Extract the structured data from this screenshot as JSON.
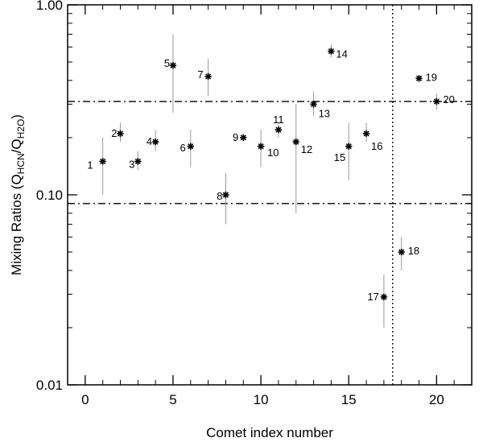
{
  "chart_data": {
    "type": "scatter",
    "title": "",
    "xlabel": "Comet index number",
    "ylabel": {
      "main": "Mixing Ratios (Q",
      "sub1": "HCN",
      "mid": "/Q",
      "sub2": "H2O",
      "end": ")"
    },
    "xlim": [
      -1,
      22
    ],
    "ylim": [
      0.01,
      1.0
    ],
    "yscale": "log",
    "x_ticks": [
      0,
      5,
      10,
      15,
      20
    ],
    "x_tick_labels": [
      "0",
      "5",
      "10",
      "15",
      "20"
    ],
    "y_ticks": [
      0.01,
      0.1,
      1.0
    ],
    "y_tick_labels": [
      "0.01",
      "0.10",
      "1.00"
    ],
    "grid": false,
    "reference_lines": {
      "horizontal": [
        0.09,
        0.31
      ],
      "vertical": [
        17.5
      ]
    },
    "points": [
      {
        "label": "1",
        "x": 1,
        "y": 0.15,
        "err_low": 0.1,
        "err_high": 0.2
      },
      {
        "label": "2",
        "x": 2,
        "y": 0.21,
        "err_low": 0.19,
        "err_high": 0.24
      },
      {
        "label": "3",
        "x": 3,
        "y": 0.15,
        "err_low": 0.135,
        "err_high": 0.17
      },
      {
        "label": "4",
        "x": 4,
        "y": 0.19,
        "err_low": 0.17,
        "err_high": 0.22
      },
      {
        "label": "5",
        "x": 5,
        "y": 0.48,
        "err_low": 0.27,
        "err_high": 0.7
      },
      {
        "label": "6",
        "x": 6,
        "y": 0.18,
        "err_low": 0.14,
        "err_high": 0.22
      },
      {
        "label": "7",
        "x": 7,
        "y": 0.42,
        "err_low": 0.33,
        "err_high": 0.52
      },
      {
        "label": "8",
        "x": 8,
        "y": 0.1,
        "err_low": 0.07,
        "err_high": 0.13
      },
      {
        "label": "9",
        "x": 9,
        "y": 0.2,
        "err_low": 0.2,
        "err_high": 0.2
      },
      {
        "label": "10",
        "x": 10,
        "y": 0.18,
        "err_low": 0.14,
        "err_high": 0.22
      },
      {
        "label": "11",
        "x": 11,
        "y": 0.22,
        "err_low": 0.2,
        "err_high": 0.24
      },
      {
        "label": "12",
        "x": 12,
        "y": 0.19,
        "err_low": 0.08,
        "err_high": 0.3
      },
      {
        "label": "13",
        "x": 13,
        "y": 0.3,
        "err_low": 0.26,
        "err_high": 0.35
      },
      {
        "label": "14",
        "x": 14,
        "y": 0.57,
        "err_low": 0.53,
        "err_high": 0.62
      },
      {
        "label": "15",
        "x": 15,
        "y": 0.18,
        "err_low": 0.12,
        "err_high": 0.24
      },
      {
        "label": "16",
        "x": 16,
        "y": 0.21,
        "err_low": 0.19,
        "err_high": 0.24
      },
      {
        "label": "17",
        "x": 17,
        "y": 0.029,
        "err_low": 0.02,
        "err_high": 0.038
      },
      {
        "label": "18",
        "x": 18,
        "y": 0.05,
        "err_low": 0.04,
        "err_high": 0.06
      },
      {
        "label": "19",
        "x": 19,
        "y": 0.41,
        "err_low": 0.4,
        "err_high": 0.42
      },
      {
        "label": "20",
        "x": 20,
        "y": 0.31,
        "err_low": 0.28,
        "err_high": 0.34
      }
    ]
  }
}
